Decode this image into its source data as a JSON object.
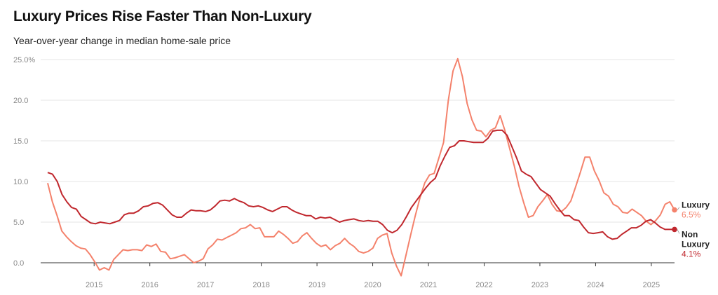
{
  "chart_data": {
    "type": "line",
    "title": "Luxury Prices Rise Faster Than Non-Luxury",
    "subtitle": "Year-over-year change in median home-sale price",
    "xlabel": "",
    "ylabel": "",
    "ylim": [
      -2,
      25
    ],
    "y_ticks": [
      {
        "value": 25,
        "label": "25.0%"
      },
      {
        "value": 20,
        "label": "20.0"
      },
      {
        "value": 15,
        "label": "15.0"
      },
      {
        "value": 10,
        "label": "10.0"
      },
      {
        "value": 5,
        "label": "5.0"
      },
      {
        "value": 0,
        "label": "0.0"
      }
    ],
    "x_start": 2014.1667,
    "x_end": 2025.4167,
    "x_ticks": [
      "2015",
      "2016",
      "2017",
      "2018",
      "2019",
      "2020",
      "2021",
      "2022",
      "2023",
      "2024",
      "2025"
    ],
    "grid": true,
    "series": [
      {
        "name": "Luxury",
        "label_value": "6.5%",
        "color": "#f4826c",
        "values": [
          9.8,
          7.5,
          5.8,
          3.9,
          3.2,
          2.6,
          2.1,
          1.8,
          1.7,
          1.0,
          0.1,
          -0.9,
          -0.6,
          -0.9,
          0.4,
          1.0,
          1.6,
          1.5,
          1.6,
          1.6,
          1.5,
          2.2,
          2.0,
          2.3,
          1.4,
          1.3,
          0.5,
          0.6,
          0.8,
          1.0,
          0.5,
          0.0,
          0.2,
          0.5,
          1.7,
          2.2,
          2.9,
          2.8,
          3.1,
          3.4,
          3.7,
          4.2,
          4.3,
          4.7,
          4.2,
          4.3,
          3.2,
          3.2,
          3.2,
          3.9,
          3.5,
          3.0,
          2.4,
          2.6,
          3.3,
          3.7,
          3.0,
          2.4,
          2.0,
          2.2,
          1.6,
          2.1,
          2.4,
          3.0,
          2.4,
          2.0,
          1.4,
          1.2,
          1.4,
          1.8,
          3.0,
          3.4,
          3.6,
          1.2,
          -0.4,
          -1.6,
          0.9,
          3.4,
          5.8,
          8.0,
          9.8,
          10.8,
          11.0,
          12.9,
          14.8,
          20.0,
          23.6,
          25.1,
          22.9,
          19.6,
          17.6,
          16.3,
          16.2,
          15.5,
          16.3,
          16.6,
          18.1,
          16.3,
          14.1,
          11.9,
          9.4,
          7.4,
          5.6,
          5.8,
          6.9,
          7.6,
          8.4,
          7.2,
          6.4,
          6.3,
          6.8,
          7.6,
          9.3,
          11.1,
          13.0,
          13.0,
          11.3,
          10.1,
          8.6,
          8.2,
          7.2,
          6.9,
          6.2,
          6.1,
          6.6,
          6.2,
          5.8,
          5.1,
          4.7,
          5.2,
          5.9,
          7.2,
          7.5,
          6.5
        ]
      },
      {
        "name": "Non Luxury",
        "label_value": "4.1%",
        "color": "#c0272d",
        "values": [
          11.1,
          10.9,
          10.0,
          8.4,
          7.5,
          6.8,
          6.6,
          5.7,
          5.3,
          4.9,
          4.8,
          5.0,
          4.9,
          4.8,
          5.0,
          5.2,
          5.9,
          6.1,
          6.1,
          6.4,
          6.9,
          7.0,
          7.3,
          7.4,
          7.1,
          6.5,
          5.9,
          5.6,
          5.6,
          6.1,
          6.5,
          6.4,
          6.4,
          6.3,
          6.5,
          7.0,
          7.6,
          7.7,
          7.6,
          7.9,
          7.6,
          7.4,
          7.0,
          6.9,
          7.0,
          6.8,
          6.5,
          6.3,
          6.6,
          6.9,
          6.9,
          6.5,
          6.2,
          6.0,
          5.8,
          5.8,
          5.4,
          5.6,
          5.5,
          5.6,
          5.3,
          5.0,
          5.2,
          5.3,
          5.4,
          5.2,
          5.1,
          5.2,
          5.1,
          5.1,
          4.7,
          4.0,
          3.7,
          4.0,
          4.7,
          5.7,
          6.8,
          7.6,
          8.4,
          9.2,
          9.9,
          10.4,
          11.9,
          13.1,
          14.2,
          14.4,
          15.0,
          15.0,
          14.9,
          14.8,
          14.8,
          14.8,
          15.3,
          16.2,
          16.3,
          16.3,
          15.7,
          14.3,
          12.9,
          11.3,
          10.9,
          10.6,
          9.8,
          9.0,
          8.6,
          8.2,
          7.3,
          6.5,
          5.8,
          5.8,
          5.3,
          5.2,
          4.4,
          3.7,
          3.6,
          3.7,
          3.8,
          3.2,
          2.9,
          3.0,
          3.5,
          3.9,
          4.3,
          4.3,
          4.6,
          5.1,
          5.3,
          4.9,
          4.4,
          4.1,
          4.1,
          4.1
        ]
      }
    ]
  }
}
